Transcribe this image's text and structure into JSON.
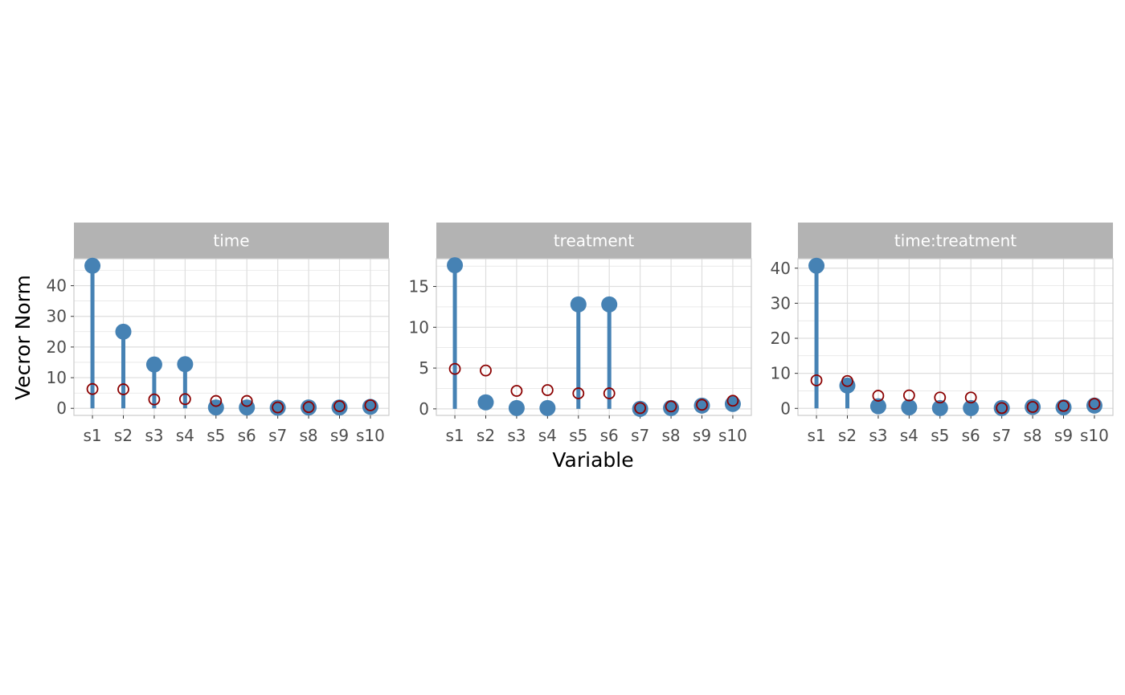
{
  "figure": {
    "xlabel": "Variable",
    "ylabel": "Vecror Norm"
  },
  "colors": {
    "lollipop": "#4682B4",
    "open_circle": "#8B0000",
    "strip_bg": "#B3B3B3",
    "grid": "#DEDEDE",
    "panel_border": "#CCCCCC"
  },
  "chart_data": [
    {
      "type": "lollipop",
      "title": "time",
      "categories": [
        "s1",
        "s2",
        "s3",
        "s4",
        "s5",
        "s6",
        "s7",
        "s8",
        "s9",
        "s10"
      ],
      "series": [
        {
          "values": [
            46.5,
            25.0,
            14.3,
            14.4,
            0.3,
            0.3,
            0.2,
            0.3,
            0.3,
            0.5
          ]
        },
        {
          "values": [
            6.3,
            6.2,
            2.9,
            3.0,
            2.4,
            2.4,
            0.3,
            0.4,
            0.7,
            1.0
          ]
        }
      ],
      "yticks": [
        0,
        10,
        20,
        30,
        40
      ],
      "ylim": [
        -2.3,
        48.8
      ]
    },
    {
      "type": "lollipop",
      "title": "treatment",
      "categories": [
        "s1",
        "s2",
        "s3",
        "s4",
        "s5",
        "s6",
        "s7",
        "s8",
        "s9",
        "s10"
      ],
      "series": [
        {
          "values": [
            17.6,
            0.8,
            0.1,
            0.1,
            12.8,
            12.8,
            0.0,
            0.1,
            0.4,
            0.6
          ]
        },
        {
          "values": [
            4.9,
            4.7,
            2.2,
            2.3,
            1.9,
            1.9,
            0.1,
            0.3,
            0.5,
            1.0
          ]
        }
      ],
      "yticks": [
        0,
        5,
        10,
        15
      ],
      "ylim": [
        -0.8,
        18.4
      ]
    },
    {
      "type": "lollipop",
      "title": "time:treatment",
      "categories": [
        "s1",
        "s2",
        "s3",
        "s4",
        "s5",
        "s6",
        "s7",
        "s8",
        "s9",
        "s10"
      ],
      "series": [
        {
          "values": [
            40.7,
            6.5,
            0.6,
            0.3,
            0.1,
            0.1,
            0.1,
            0.4,
            0.3,
            0.8
          ]
        },
        {
          "values": [
            8.0,
            7.8,
            3.6,
            3.7,
            3.1,
            3.1,
            0.1,
            0.4,
            0.7,
            1.3
          ]
        }
      ],
      "yticks": [
        0,
        10,
        20,
        30,
        40
      ],
      "ylim": [
        -2.0,
        42.7
      ]
    }
  ]
}
